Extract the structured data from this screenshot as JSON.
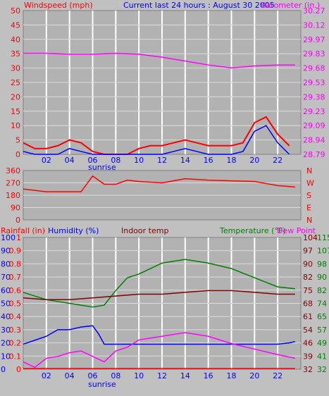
{
  "header": {
    "windspeed": "Windspeed (mph)",
    "current": "Current last 24 hours : August 30 2005",
    "barometer": "Barometer (in.)"
  },
  "labels": {
    "sunrise": "sunrise",
    "rainfall": "Rainfall (in)",
    "humidity": "Humidity (%)",
    "indoor": "Indoor temp",
    "temperature": "Temperature (°F)",
    "dewpoint": "Dew Point"
  },
  "colors": {
    "panel": "#b2b2b2",
    "grid": "#ffffff",
    "wind": "#ff0000",
    "gust": "#0000ff",
    "barometer": "#ff00ff",
    "direction": "#ff0000",
    "humidity": "#0000ff",
    "indoor": "#800000",
    "temperature": "#008000",
    "dewpoint": "#ff00ff",
    "rainfall": "#ff0000"
  },
  "chart_data": [
    {
      "type": "line",
      "x_ticks": [
        "02",
        "04",
        "06",
        "08",
        "10",
        "12",
        "14",
        "16",
        "18",
        "20",
        "22"
      ],
      "y_left": [
        "50",
        "45",
        "40",
        "35",
        "30",
        "25",
        "20",
        "15",
        "10",
        "5",
        "0"
      ],
      "y_right": [
        "30.27",
        "30.12",
        "29.97",
        "29.83",
        "29.68",
        "29.53",
        "29.38",
        "29.23",
        "29.09",
        "28.94",
        "28.79"
      ],
      "ylim_left": [
        0,
        50
      ],
      "ylim_right": [
        28.79,
        30.27
      ],
      "series": [
        {
          "name": "Windspeed (mph)",
          "hours": [
            0,
            1,
            2,
            3,
            4,
            5,
            6,
            7,
            8,
            9,
            10,
            11,
            12,
            13,
            14,
            15,
            16,
            17,
            18,
            19,
            20,
            21,
            22,
            23
          ],
          "values": [
            4,
            2,
            2,
            3,
            5,
            4,
            1,
            0,
            0,
            0,
            2,
            3,
            3,
            4,
            5,
            4,
            3,
            3,
            3,
            4,
            11,
            13,
            7,
            3
          ]
        },
        {
          "name": "Barometer (in.)",
          "hours": [
            0,
            2,
            4,
            6,
            8,
            10,
            12,
            14,
            16,
            18,
            20,
            22,
            23.5
          ],
          "values": [
            29.83,
            29.83,
            29.82,
            29.82,
            29.83,
            29.82,
            29.79,
            29.75,
            29.71,
            29.68,
            29.7,
            29.71,
            29.71
          ]
        }
      ]
    },
    {
      "type": "line",
      "y_left": [
        "360",
        "270",
        "180",
        "90",
        "0"
      ],
      "y_right": [
        "N",
        "W",
        "S",
        "E",
        "N"
      ],
      "ylim": [
        0,
        360
      ],
      "series": [
        {
          "name": "Wind direction",
          "hours": [
            0,
            2,
            4,
            5,
            6,
            7,
            8,
            9,
            10,
            12,
            14,
            16,
            18,
            20,
            22,
            23.5
          ],
          "values": [
            225,
            205,
            205,
            205,
            320,
            260,
            260,
            290,
            280,
            270,
            300,
            290,
            285,
            280,
            250,
            240
          ]
        }
      ]
    },
    {
      "type": "line",
      "x_ticks": [
        "02",
        "04",
        "06",
        "08",
        "10",
        "12",
        "14",
        "16",
        "18",
        "20",
        "22"
      ],
      "y_rain": [
        "1",
        "0.9",
        "0.8",
        "0.7",
        "0.6",
        "0.5",
        "0.4",
        "0.3",
        "0.2",
        "0.1",
        "0"
      ],
      "y_humidity": [
        "100",
        "90",
        "80",
        "70",
        "60",
        "50",
        "40",
        "30",
        "20",
        "10",
        "0"
      ],
      "y_temp_left": [
        "104",
        "97",
        "90",
        "82",
        "75",
        "68",
        "61",
        "54",
        "46",
        "39",
        "32"
      ],
      "y_temp_right": [
        "115",
        "107",
        "98",
        "90",
        "82",
        "74",
        "65",
        "57",
        "49",
        "41",
        "32"
      ],
      "series": [
        {
          "name": "Temperature (°F)",
          "hours": [
            0,
            2,
            4,
            5,
            6,
            7,
            8,
            9,
            10,
            12,
            14,
            16,
            18,
            20,
            22,
            23.5
          ],
          "values": [
            74,
            70,
            68,
            67,
            66,
            67,
            75,
            82,
            84,
            90,
            92,
            90,
            87,
            82,
            77,
            76
          ]
        },
        {
          "name": "Indoor temp",
          "hours": [
            0,
            2,
            4,
            6,
            8,
            10,
            12,
            14,
            16,
            18,
            20,
            22,
            23.5
          ],
          "values": [
            71,
            70,
            70,
            71,
            72,
            73,
            73,
            74,
            75,
            75,
            74,
            73,
            73
          ]
        },
        {
          "name": "Humidity (%)",
          "hours": [
            0,
            1,
            2,
            3,
            4,
            5,
            6,
            6.5,
            7,
            8,
            10,
            12,
            14,
            16,
            18,
            20,
            22,
            23,
            23.5
          ],
          "values": [
            19,
            22,
            25,
            30,
            30,
            32,
            33,
            27,
            19,
            19,
            19,
            19,
            19,
            19,
            19,
            19,
            19,
            20,
            21
          ]
        },
        {
          "name": "Dew Point",
          "hours": [
            0,
            1,
            2,
            3,
            4,
            5,
            6,
            7,
            8,
            9,
            10,
            12,
            14,
            16,
            18,
            20,
            22,
            23.5
          ],
          "values": [
            36,
            33,
            38,
            39,
            41,
            42,
            39,
            36,
            42,
            44,
            48,
            50,
            52,
            50,
            46,
            43,
            40,
            38
          ]
        },
        {
          "name": "Rainfall (in)",
          "hours": [
            0,
            23.5
          ],
          "values": [
            0,
            0
          ]
        }
      ]
    }
  ]
}
